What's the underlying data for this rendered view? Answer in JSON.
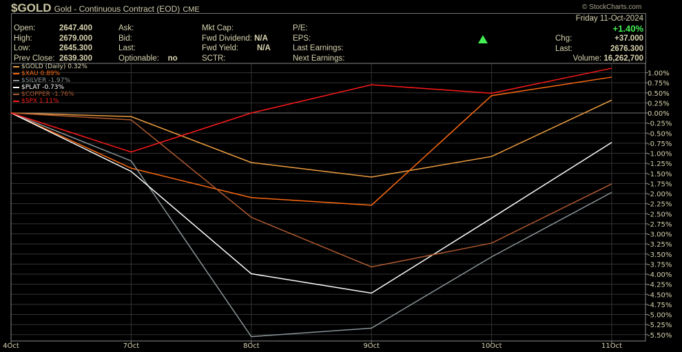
{
  "header": {
    "symbol": "$GOLD",
    "name": "Gold - Continuous Contract (EOD)",
    "exchange": "CME",
    "credit": "© StockCharts.com",
    "date": "Friday  11-Oct-2024",
    "change_pct": "+1.40%",
    "trend_icon": "up-triangle-icon",
    "fields": {
      "open": {
        "label": "Open:",
        "value": "2647.400"
      },
      "high": {
        "label": "High:",
        "value": "2679.000"
      },
      "low": {
        "label": "Low:",
        "value": "2645.300"
      },
      "prev_close": {
        "label": "Prev Close:",
        "value": "2639.300"
      },
      "ask": {
        "label": "Ask:",
        "value": ""
      },
      "bid": {
        "label": "Bid:",
        "value": ""
      },
      "last_q": {
        "label": "Last:",
        "value": ""
      },
      "optionable": {
        "label": "Optionable:",
        "value": "no"
      },
      "mkt_cap": {
        "label": "Mkt Cap:",
        "value": ""
      },
      "fwd_dividend": {
        "label": "Fwd Dividend:",
        "value": "N/A"
      },
      "fwd_yield": {
        "label": "Fwd Yield:",
        "value": "N/A"
      },
      "sctr": {
        "label": "SCTR:",
        "value": ""
      },
      "pe": {
        "label": "P/E:",
        "value": ""
      },
      "eps": {
        "label": "EPS:",
        "value": ""
      },
      "last_earnings": {
        "label": "Last Earnings:",
        "value": ""
      },
      "next_earnings": {
        "label": "Next Earnings:",
        "value": ""
      },
      "chg": {
        "label": "Chg:",
        "value": "+37.000"
      },
      "last": {
        "label": "Last:",
        "value": "2676.300"
      },
      "volume": {
        "label": "Volume:",
        "value": "16,262,700"
      }
    }
  },
  "chart_data": {
    "type": "line",
    "categories": [
      "4Oct",
      "7Oct",
      "8Oct",
      "9Oct",
      "10Oct",
      "11Oct"
    ],
    "ylim": [
      -5.5,
      1.0
    ],
    "yticks": [
      1.0,
      0.75,
      0.5,
      0.25,
      0.0,
      -0.25,
      -0.5,
      -0.75,
      -1.0,
      -1.25,
      -1.5,
      -1.75,
      -2.0,
      -2.25,
      -2.5,
      -2.75,
      -3.0,
      -3.25,
      -3.5,
      -3.75,
      -4.0,
      -4.25,
      -4.5,
      -4.75,
      -5.0,
      -5.25,
      -5.5
    ],
    "ytick_format": "percent",
    "grid": true,
    "legend_position": "top-left",
    "series": [
      {
        "name": "$GOLD (Daily) 0.32%",
        "color": "#f0a040",
        "values": [
          0,
          -0.09,
          -1.23,
          -1.59,
          -1.08,
          0.32
        ]
      },
      {
        "name": "$XAU 0.89%",
        "color": "#ff6a10",
        "values": [
          0,
          -1.37,
          -2.1,
          -2.29,
          0.43,
          0.89
        ]
      },
      {
        "name": "$SILVER -1.97%",
        "color": "#8a9498",
        "values": [
          0,
          -1.19,
          -5.55,
          -5.34,
          -3.57,
          -1.97
        ]
      },
      {
        "name": "$PLAT -0.73%",
        "color": "#ffffff",
        "values": [
          0,
          -1.45,
          -3.99,
          -4.47,
          -2.61,
          -0.73
        ]
      },
      {
        "name": "$COPPER -1.76%",
        "color": "#b05a30",
        "values": [
          0,
          -0.17,
          -2.59,
          -3.82,
          -3.23,
          -1.76
        ]
      },
      {
        "name": "$SPX 1.11%",
        "color": "#ff1a1a",
        "values": [
          0,
          -0.97,
          0.0,
          0.7,
          0.49,
          1.11
        ]
      }
    ]
  }
}
